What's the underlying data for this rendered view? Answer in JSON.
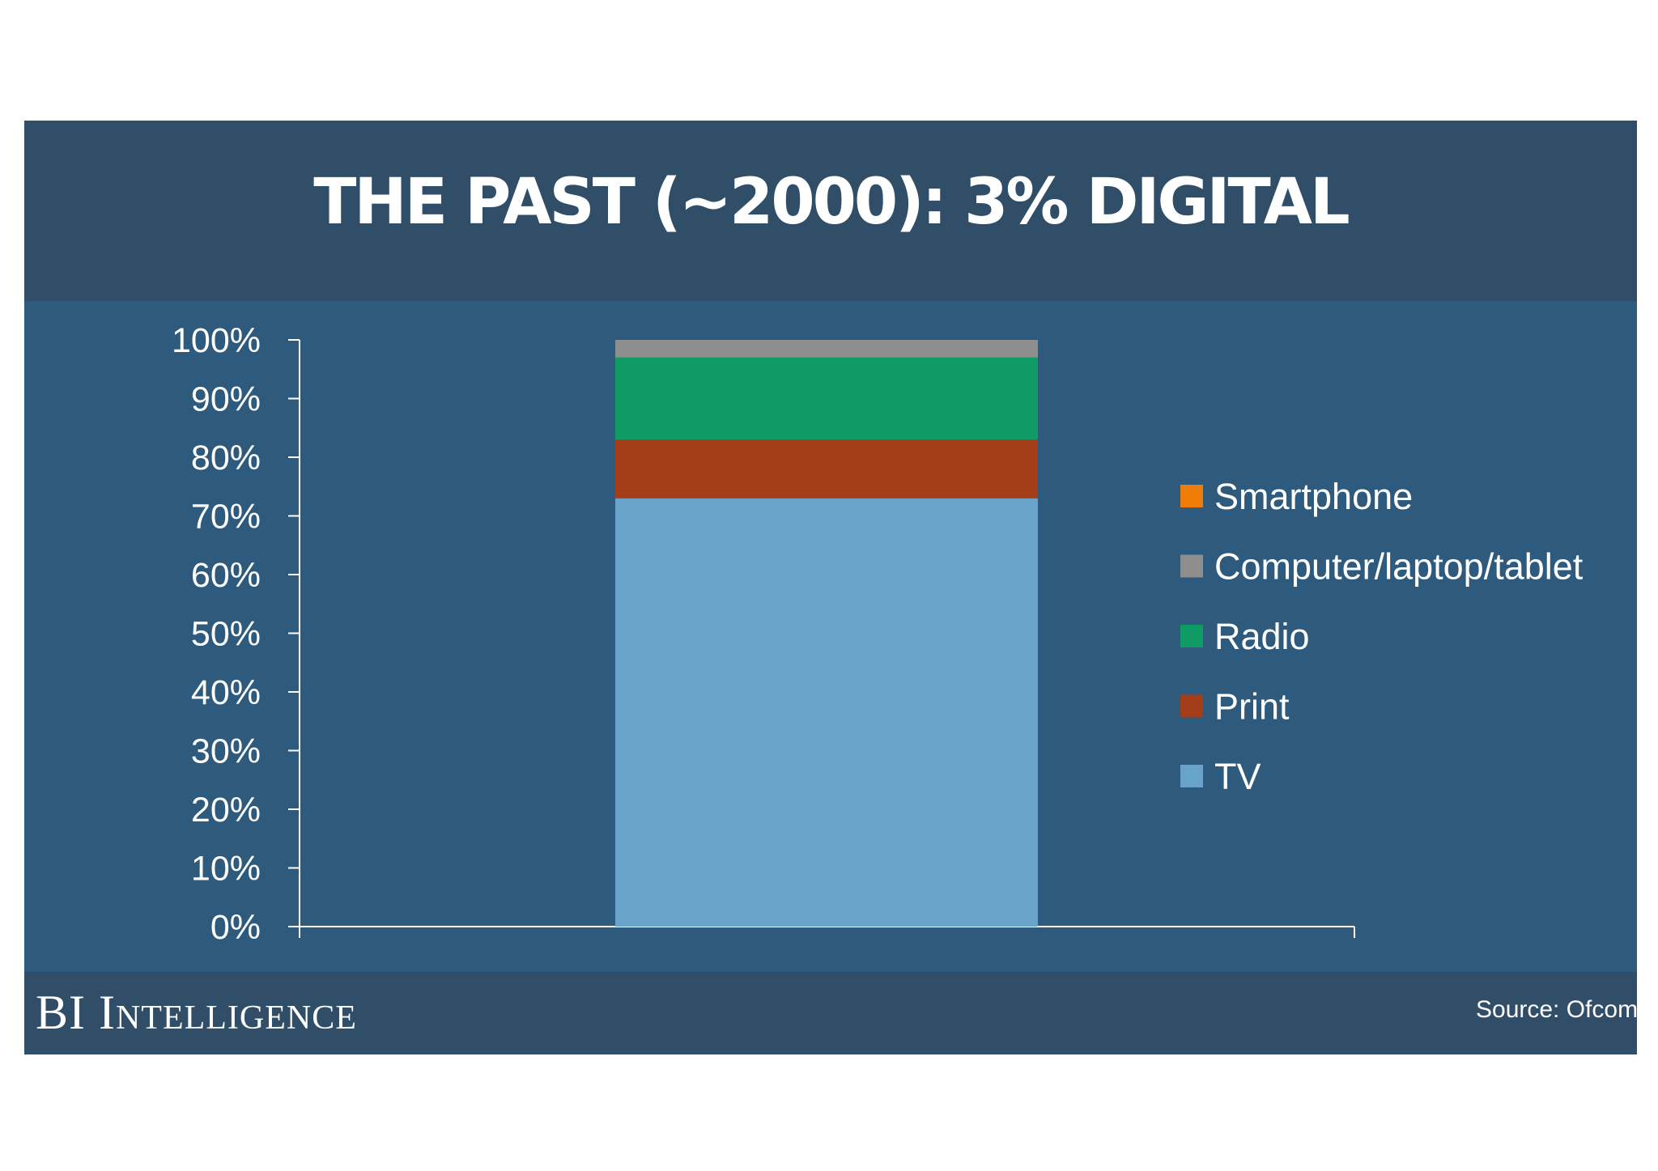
{
  "footer": {
    "logo_text": "BI Intelligence",
    "source_text": "Source: Ofcom"
  },
  "chart_data": {
    "type": "bar",
    "stacked": true,
    "title": "THE PAST (~2000): 3% DIGITAL",
    "categories": [
      ""
    ],
    "ylim": [
      0,
      100
    ],
    "yticks": [
      "0%",
      "10%",
      "20%",
      "30%",
      "40%",
      "50%",
      "60%",
      "70%",
      "80%",
      "90%",
      "100%"
    ],
    "grid": false,
    "legend": "right",
    "series": [
      {
        "name": "TV",
        "values": [
          73
        ],
        "color": "#69a3cc"
      },
      {
        "name": "Print",
        "values": [
          10
        ],
        "color": "#a33d1a"
      },
      {
        "name": "Radio",
        "values": [
          14
        ],
        "color": "#0f9b63"
      },
      {
        "name": "Computer/laptop/tablet",
        "values": [
          3
        ],
        "color": "#8e8e8e"
      },
      {
        "name": "Smartphone",
        "values": [
          0
        ],
        "color": "#f07d0a"
      }
    ]
  }
}
